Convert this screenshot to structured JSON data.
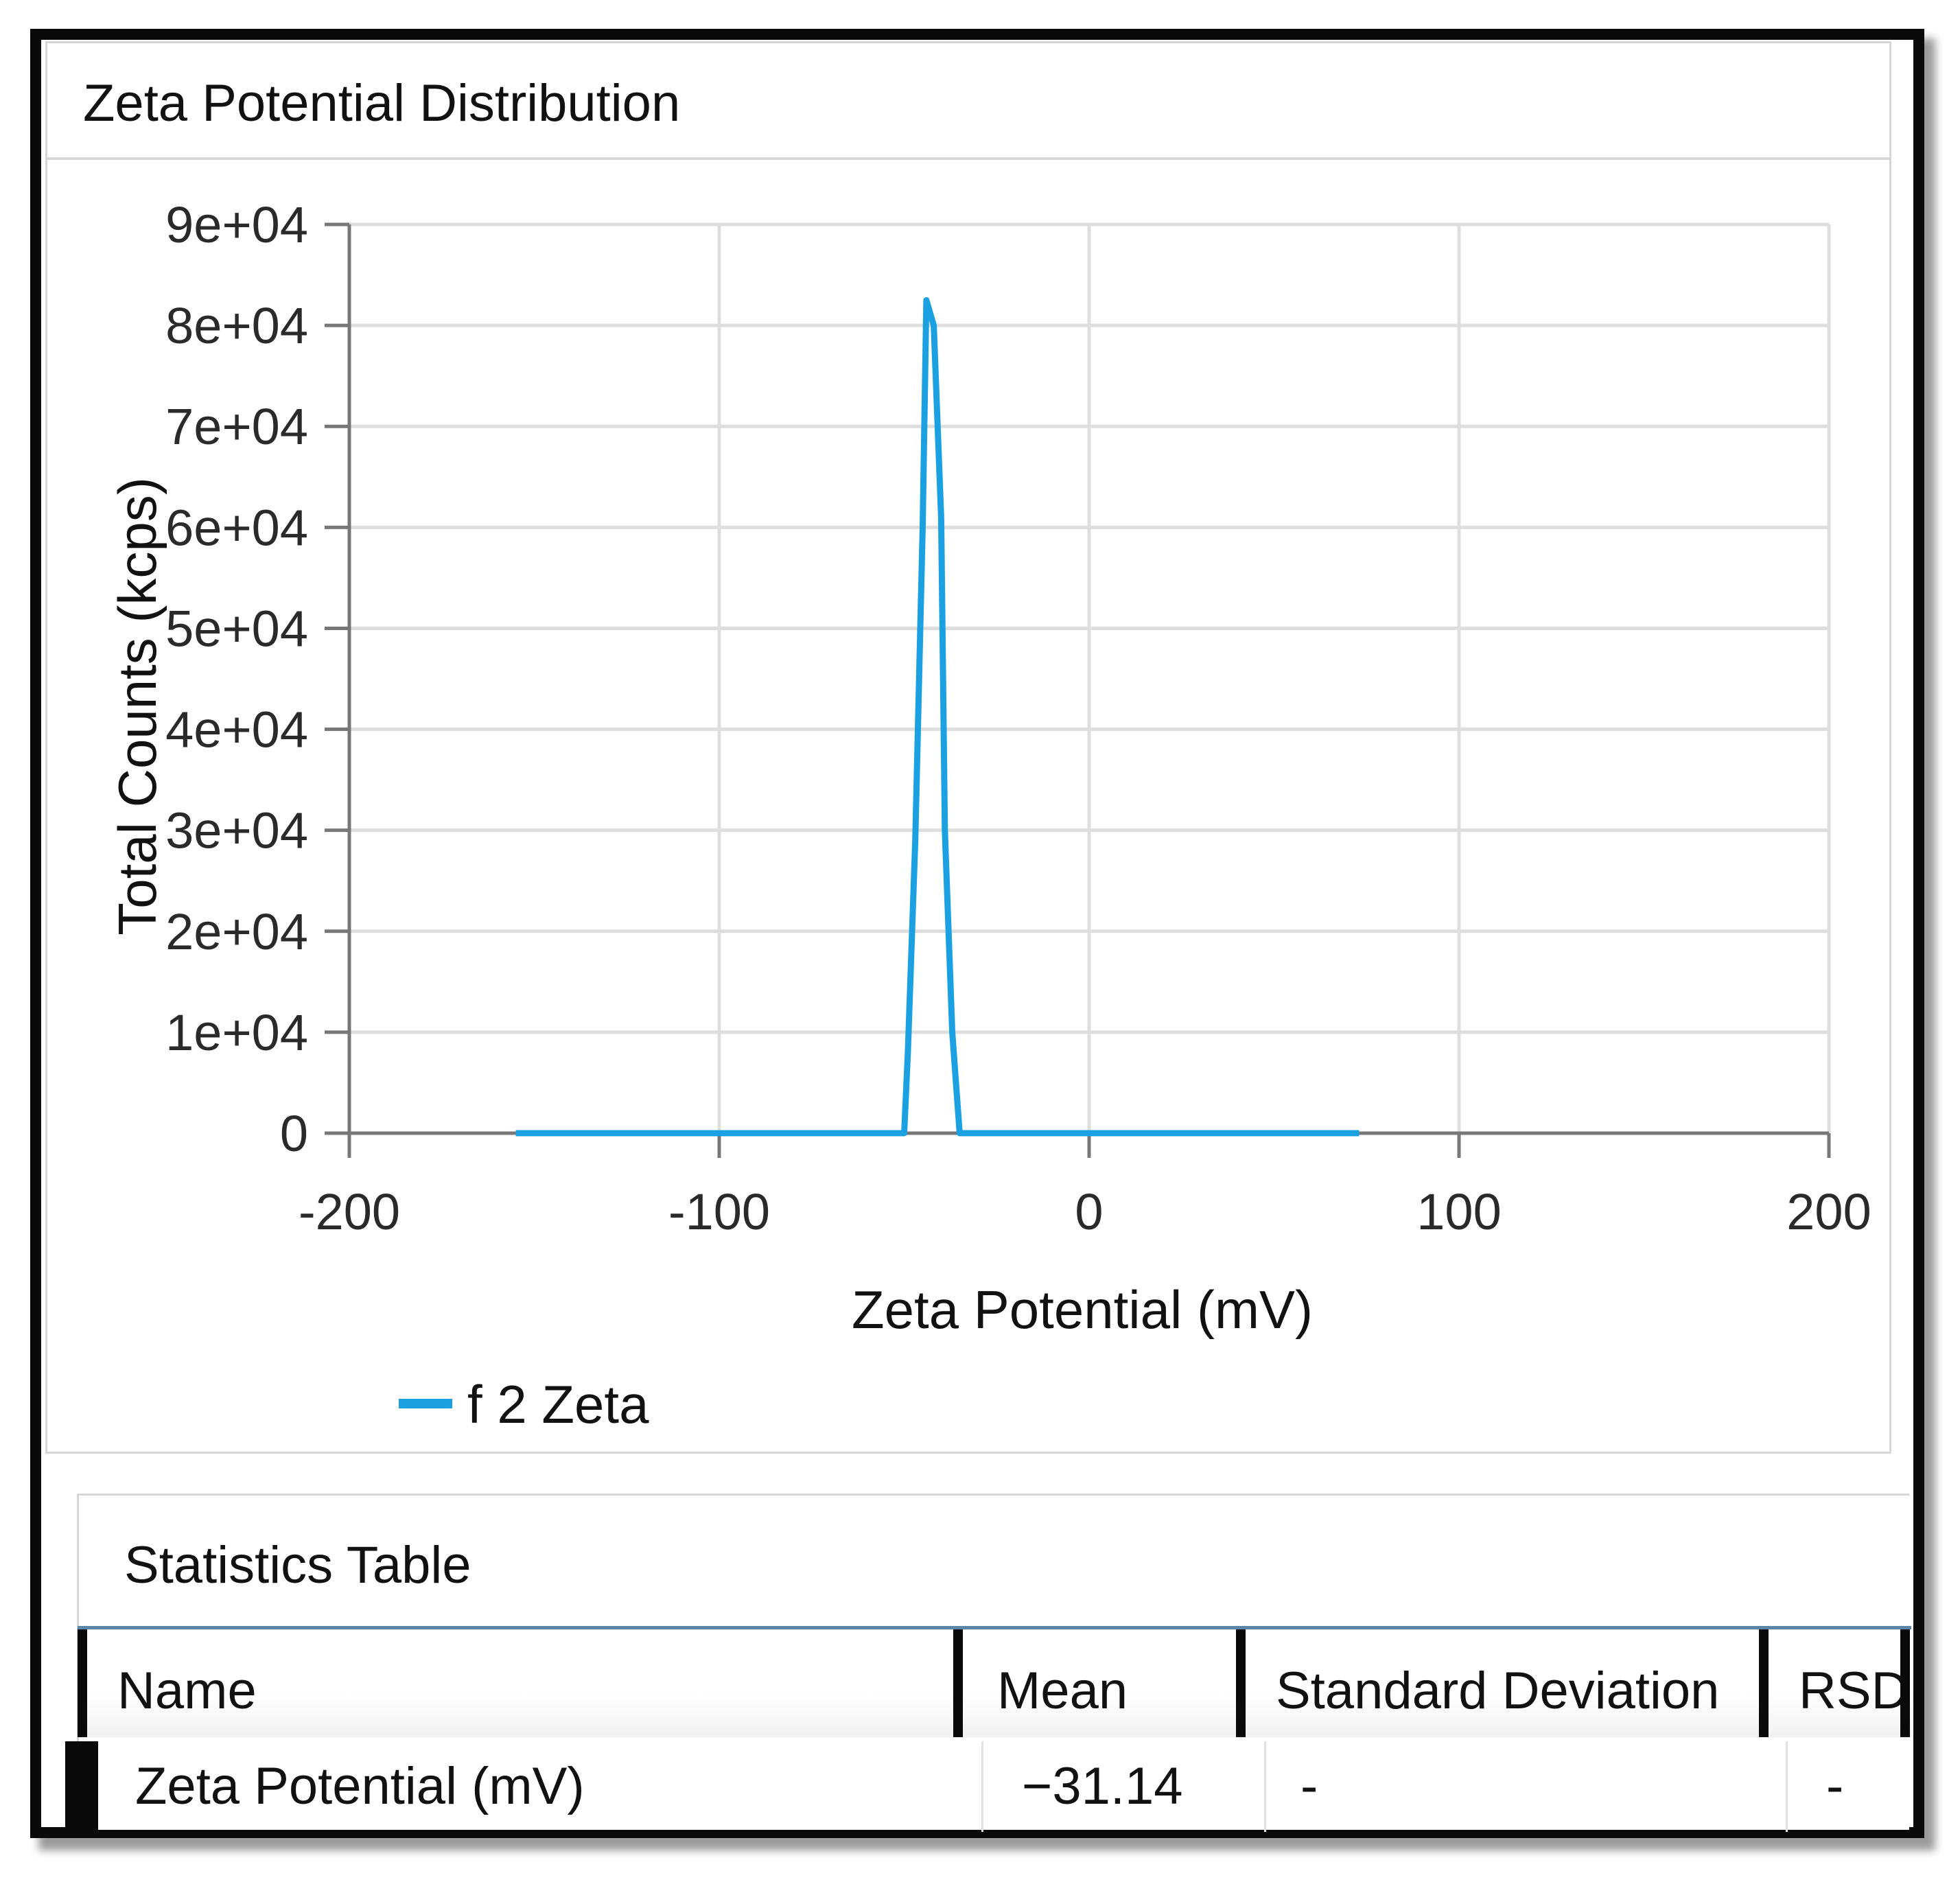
{
  "panel": {
    "title": "Zeta Potential Distribution"
  },
  "chart_data": {
    "type": "line",
    "title": "",
    "xlabel": "Zeta Potential (mV)",
    "ylabel": "Total Counts (kcps)",
    "xlim": [
      -200,
      200
    ],
    "ylim": [
      0,
      90000
    ],
    "x_ticks": [
      -200,
      -100,
      0,
      100,
      200
    ],
    "x_tick_labels": [
      "-200",
      "-100",
      "0",
      "100",
      "200"
    ],
    "y_ticks": [
      0,
      10000,
      20000,
      30000,
      40000,
      50000,
      60000,
      70000,
      80000,
      90000
    ],
    "y_tick_labels": [
      "0",
      "1e+04",
      "2e+04",
      "3e+04",
      "4e+04",
      "5e+04",
      "6e+04",
      "7e+04",
      "8e+04",
      "9e+04"
    ],
    "grid": true,
    "legend_position": "bottom-left",
    "series": [
      {
        "name": "f 2 Zeta",
        "color": "#1ba1e2",
        "x": [
          -155,
          -50,
          -49,
          -47,
          -45,
          -44,
          -42,
          -40,
          -39,
          -37,
          -35,
          -33,
          73
        ],
        "y": [
          0,
          0,
          8000,
          29000,
          60000,
          82500,
          80000,
          61000,
          30000,
          10000,
          0,
          0,
          0
        ]
      }
    ]
  },
  "stats": {
    "title": "Statistics Table",
    "columns": [
      "Name",
      "Mean",
      "Standard Deviation",
      "RSD"
    ],
    "rows": [
      [
        "Zeta Potential (mV)",
        "−31.14",
        "-",
        "-"
      ]
    ]
  }
}
